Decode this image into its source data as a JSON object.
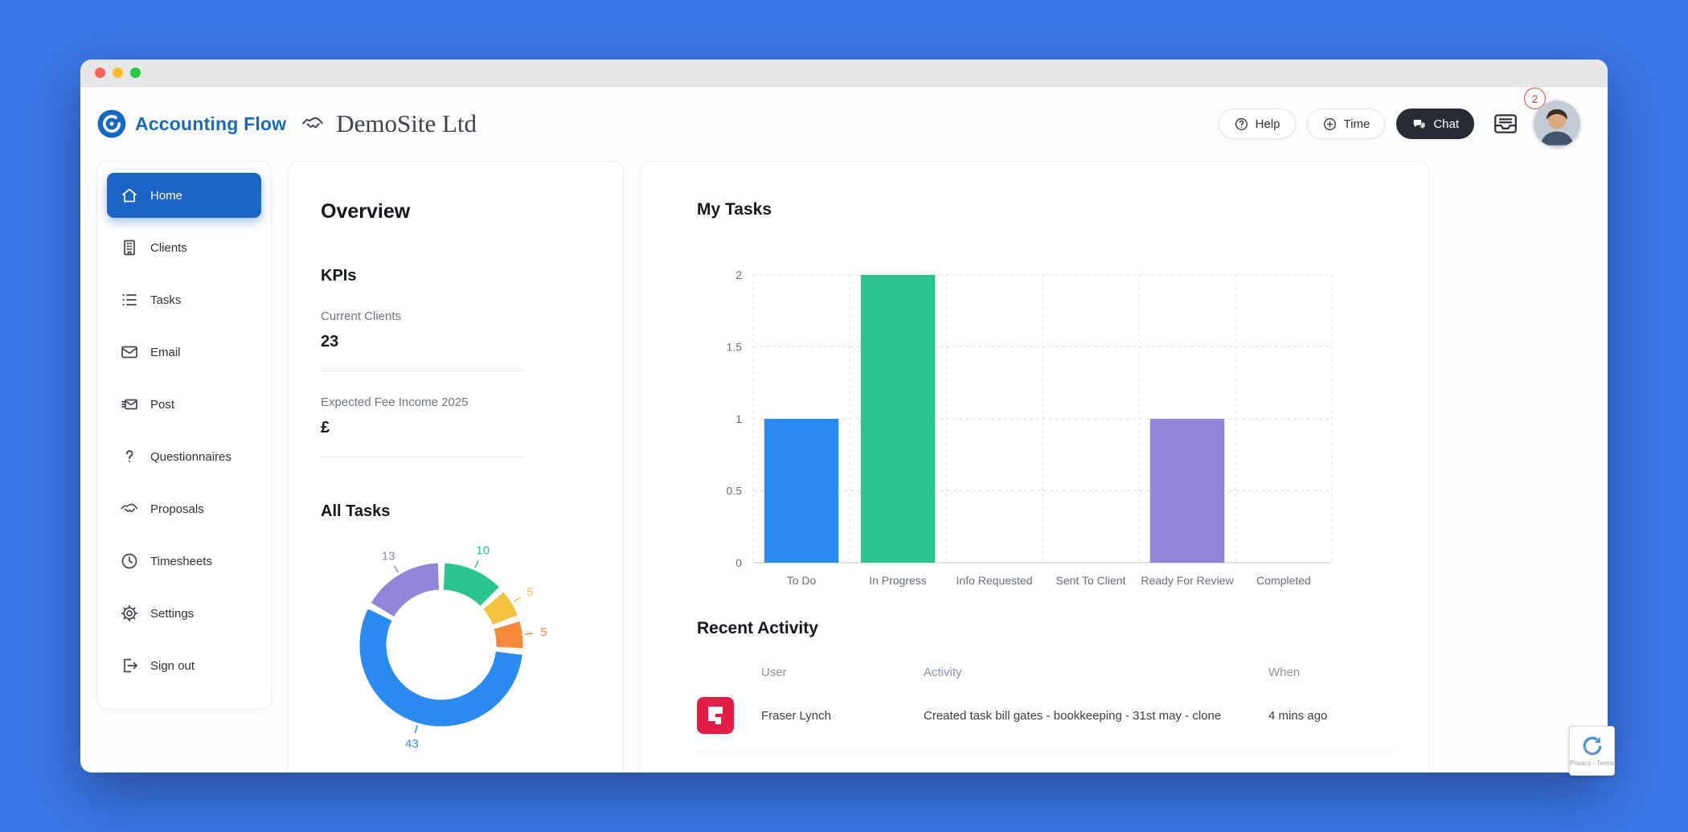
{
  "header": {
    "brand_name": "Accounting Flow",
    "client_name": "DemoSite Ltd",
    "help_label": "Help",
    "time_label": "Time",
    "chat_label": "Chat",
    "inbox_badge_count": "2"
  },
  "sidebar": {
    "active_item": "Home",
    "items": [
      {
        "label": "Home"
      },
      {
        "label": "Clients"
      },
      {
        "label": "Tasks"
      },
      {
        "label": "Email"
      },
      {
        "label": "Post"
      },
      {
        "label": "Questionnaires"
      },
      {
        "label": "Proposals"
      },
      {
        "label": "Timesheets"
      },
      {
        "label": "Settings"
      },
      {
        "label": "Sign out"
      }
    ]
  },
  "overview_panel": {
    "title": "Overview",
    "kpis_heading": "KPIs",
    "kpi_current_clients_label": "Current Clients",
    "kpi_current_clients_value": "23",
    "kpi_expected_fee_label": "Expected Fee Income 2025",
    "kpi_expected_fee_value": "£",
    "all_tasks_heading": "All Tasks"
  },
  "tasks_panel": {
    "my_tasks_heading": "My Tasks",
    "recent_activity_heading": "Recent Activity",
    "table": {
      "columns": [
        "User",
        "Activity",
        "When"
      ],
      "rows": [
        {
          "user": "Fraser Lynch",
          "activity": "Created task bill gates - bookkeeping - 31st may - clone",
          "when": "4 mins ago"
        }
      ]
    }
  },
  "recaptcha": {
    "caption": "Privacy - Terms"
  },
  "colors": {
    "page_background": "#3b77e8",
    "active_nav": "#1b63c5",
    "brand_blue": "#1a6bb3",
    "badge_red": "#e5484d",
    "activity_logo_red": "#e11d48"
  },
  "chart_data": [
    {
      "type": "bar",
      "title": "My Tasks",
      "categories": [
        "To Do",
        "In Progress",
        "Info Requested",
        "Sent To Client",
        "Ready For Review",
        "Completed"
      ],
      "values": [
        1,
        2,
        0,
        0,
        1,
        0
      ],
      "colors": [
        "#2b8af2",
        "#2bc491",
        "#f3c33f",
        "#f4883b",
        "#9184d9",
        "#d0d4dc"
      ],
      "xlabel": "",
      "ylabel": "",
      "ylim": [
        0,
        2
      ],
      "yticks": [
        0,
        0.5,
        1,
        1.5,
        2
      ],
      "grid": "dashed-both-axes",
      "legend": "none"
    },
    {
      "type": "pie",
      "title": "All Tasks",
      "donut": true,
      "direction": "clockwise-from-top",
      "segments": [
        {
          "label": "10",
          "value": 10,
          "color": "#2bc491"
        },
        {
          "label": "5",
          "value": 5,
          "color": "#f3c33f"
        },
        {
          "label": "5",
          "value": 5,
          "color": "#f4883b"
        },
        {
          "label": "43",
          "value": 43,
          "color": "#2b8af2"
        },
        {
          "label": "13",
          "value": 13,
          "color": "#9184d9"
        }
      ]
    }
  ]
}
